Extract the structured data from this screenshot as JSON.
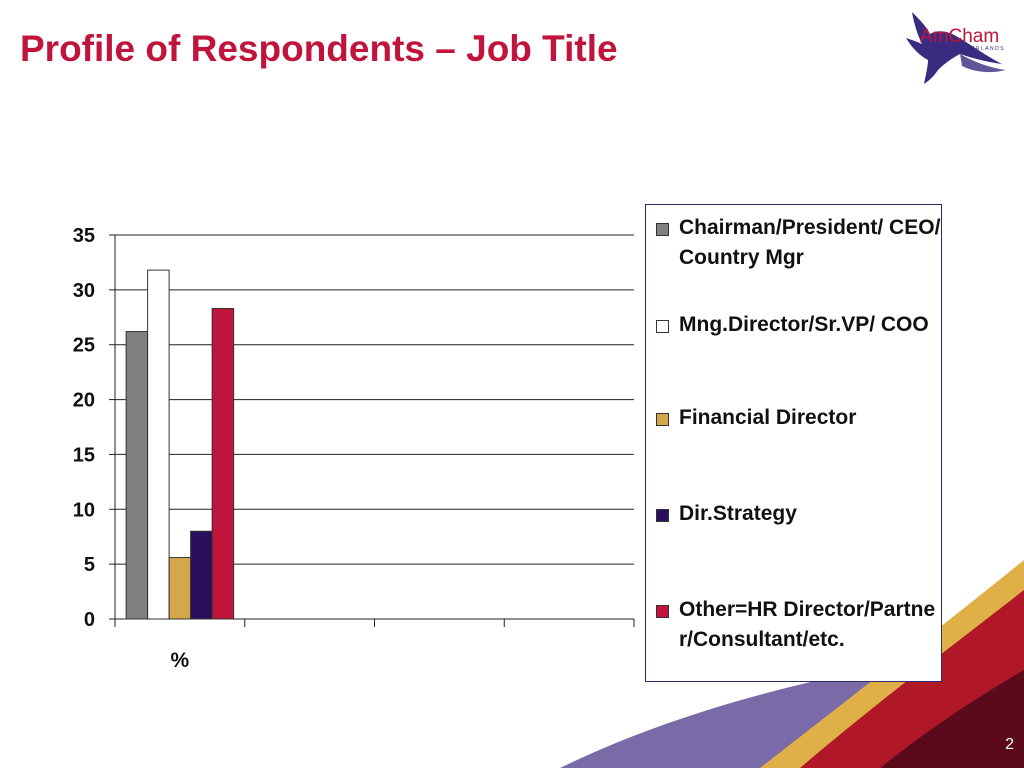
{
  "slide": {
    "title": "Profile of Respondents – Job Title",
    "page_number": "2"
  },
  "logo": {
    "text": "AmCham",
    "subtext": "THE NETHERLANDS",
    "icon": "eagle-icon"
  },
  "chart_data": {
    "type": "bar",
    "categories": [
      "%"
    ],
    "series": [
      {
        "name": "Chairman/President/ CEO/Country Mgr",
        "values": [
          26.2
        ],
        "color": "#808080"
      },
      {
        "name": "Mng.Director/Sr.VP/ COO",
        "values": [
          31.8
        ],
        "color": "#ffffff"
      },
      {
        "name": "Financial Director",
        "values": [
          5.6
        ],
        "color": "#d4a84a"
      },
      {
        "name": "Dir.Strategy",
        "values": [
          8.0
        ],
        "color": "#2a0f5c"
      },
      {
        "name": "Other=HR Director/Partner/Consultant/etc.",
        "values": [
          28.3
        ],
        "color": "#c0143c"
      }
    ],
    "title": "",
    "xlabel": "",
    "ylabel": "",
    "ylim": [
      0,
      35
    ],
    "yticks": [
      0,
      5,
      10,
      15,
      20,
      25,
      30,
      35
    ],
    "grid": true,
    "legend": "right"
  },
  "colors": {
    "title": "#c0143c",
    "accent_purple": "#6a5aa0",
    "accent_gold": "#e0b048",
    "accent_red": "#a01020"
  }
}
